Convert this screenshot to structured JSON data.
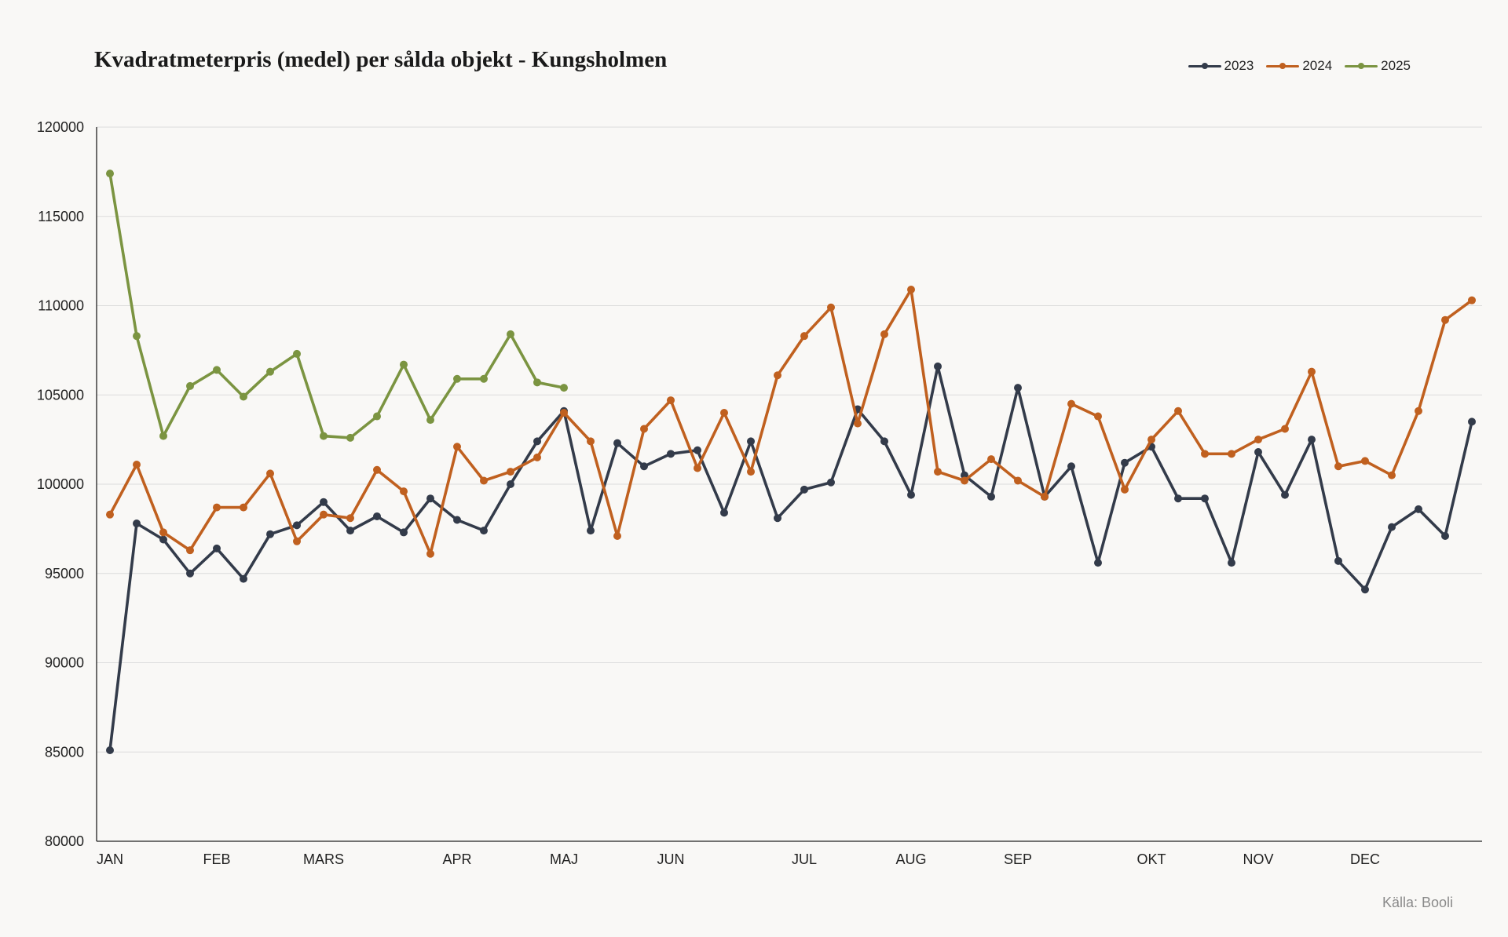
{
  "chart_data": {
    "type": "line",
    "title": "Kvadratmeterpris (medel) per sålda objekt - Kungsholmen",
    "source": "Källa: Booli",
    "ylim": [
      80000,
      120000
    ],
    "y_ticks": [
      "80000",
      "85000",
      "90000",
      "95000",
      "100000",
      "105000",
      "110000",
      "115000",
      "120000"
    ],
    "y_tick_values": [
      80000,
      85000,
      90000,
      95000,
      100000,
      105000,
      110000,
      115000,
      120000
    ],
    "x_ticks": [
      {
        "label": "JAN",
        "index": 0
      },
      {
        "label": "FEB",
        "index": 4
      },
      {
        "label": "MARS",
        "index": 8
      },
      {
        "label": "APR",
        "index": 13
      },
      {
        "label": "MAJ",
        "index": 17
      },
      {
        "label": "JUN",
        "index": 21
      },
      {
        "label": "JUL",
        "index": 26
      },
      {
        "label": "AUG",
        "index": 30
      },
      {
        "label": "SEP",
        "index": 34
      },
      {
        "label": "OKT",
        "index": 39
      },
      {
        "label": "NOV",
        "index": 43
      },
      {
        "label": "DEC",
        "index": 47
      }
    ],
    "grid": true,
    "legend_position": "top-right",
    "series": [
      {
        "name": "2023",
        "color": "#333b4a",
        "values": [
          85100,
          97800,
          96900,
          95000,
          96400,
          94700,
          97200,
          97700,
          99000,
          97400,
          98200,
          97300,
          99200,
          98000,
          97400,
          100000,
          102400,
          104100,
          97400,
          102300,
          101000,
          101700,
          101900,
          98400,
          102400,
          98100,
          99700,
          100100,
          104200,
          102400,
          99400,
          106600,
          100500,
          99300,
          105400,
          99300,
          101000,
          95600,
          101200,
          102100,
          99200,
          99200,
          95600,
          101800,
          99400,
          102500,
          95700,
          94100,
          97600,
          98600,
          97100,
          103500
        ]
      },
      {
        "name": "2024",
        "color": "#c0601f",
        "values": [
          98300,
          101100,
          97300,
          96300,
          98700,
          98700,
          100600,
          96800,
          98300,
          98100,
          100800,
          99600,
          96100,
          102100,
          100200,
          100700,
          101500,
          104000,
          102400,
          97100,
          103100,
          104700,
          100900,
          104000,
          100700,
          106100,
          108300,
          109900,
          103400,
          108400,
          110900,
          100700,
          100200,
          101400,
          100200,
          99300,
          104500,
          103800,
          99700,
          102500,
          104100,
          101700,
          101700,
          102500,
          103100,
          106300,
          101000,
          101300,
          100500,
          104100,
          109200,
          110300
        ]
      },
      {
        "name": "2025",
        "color": "#7b9441",
        "values": [
          117400,
          108300,
          102700,
          105500,
          106400,
          104900,
          106300,
          107300,
          102700,
          102600,
          103800,
          106700,
          103600,
          105900,
          105900,
          108400,
          105700,
          105400
        ]
      }
    ]
  }
}
